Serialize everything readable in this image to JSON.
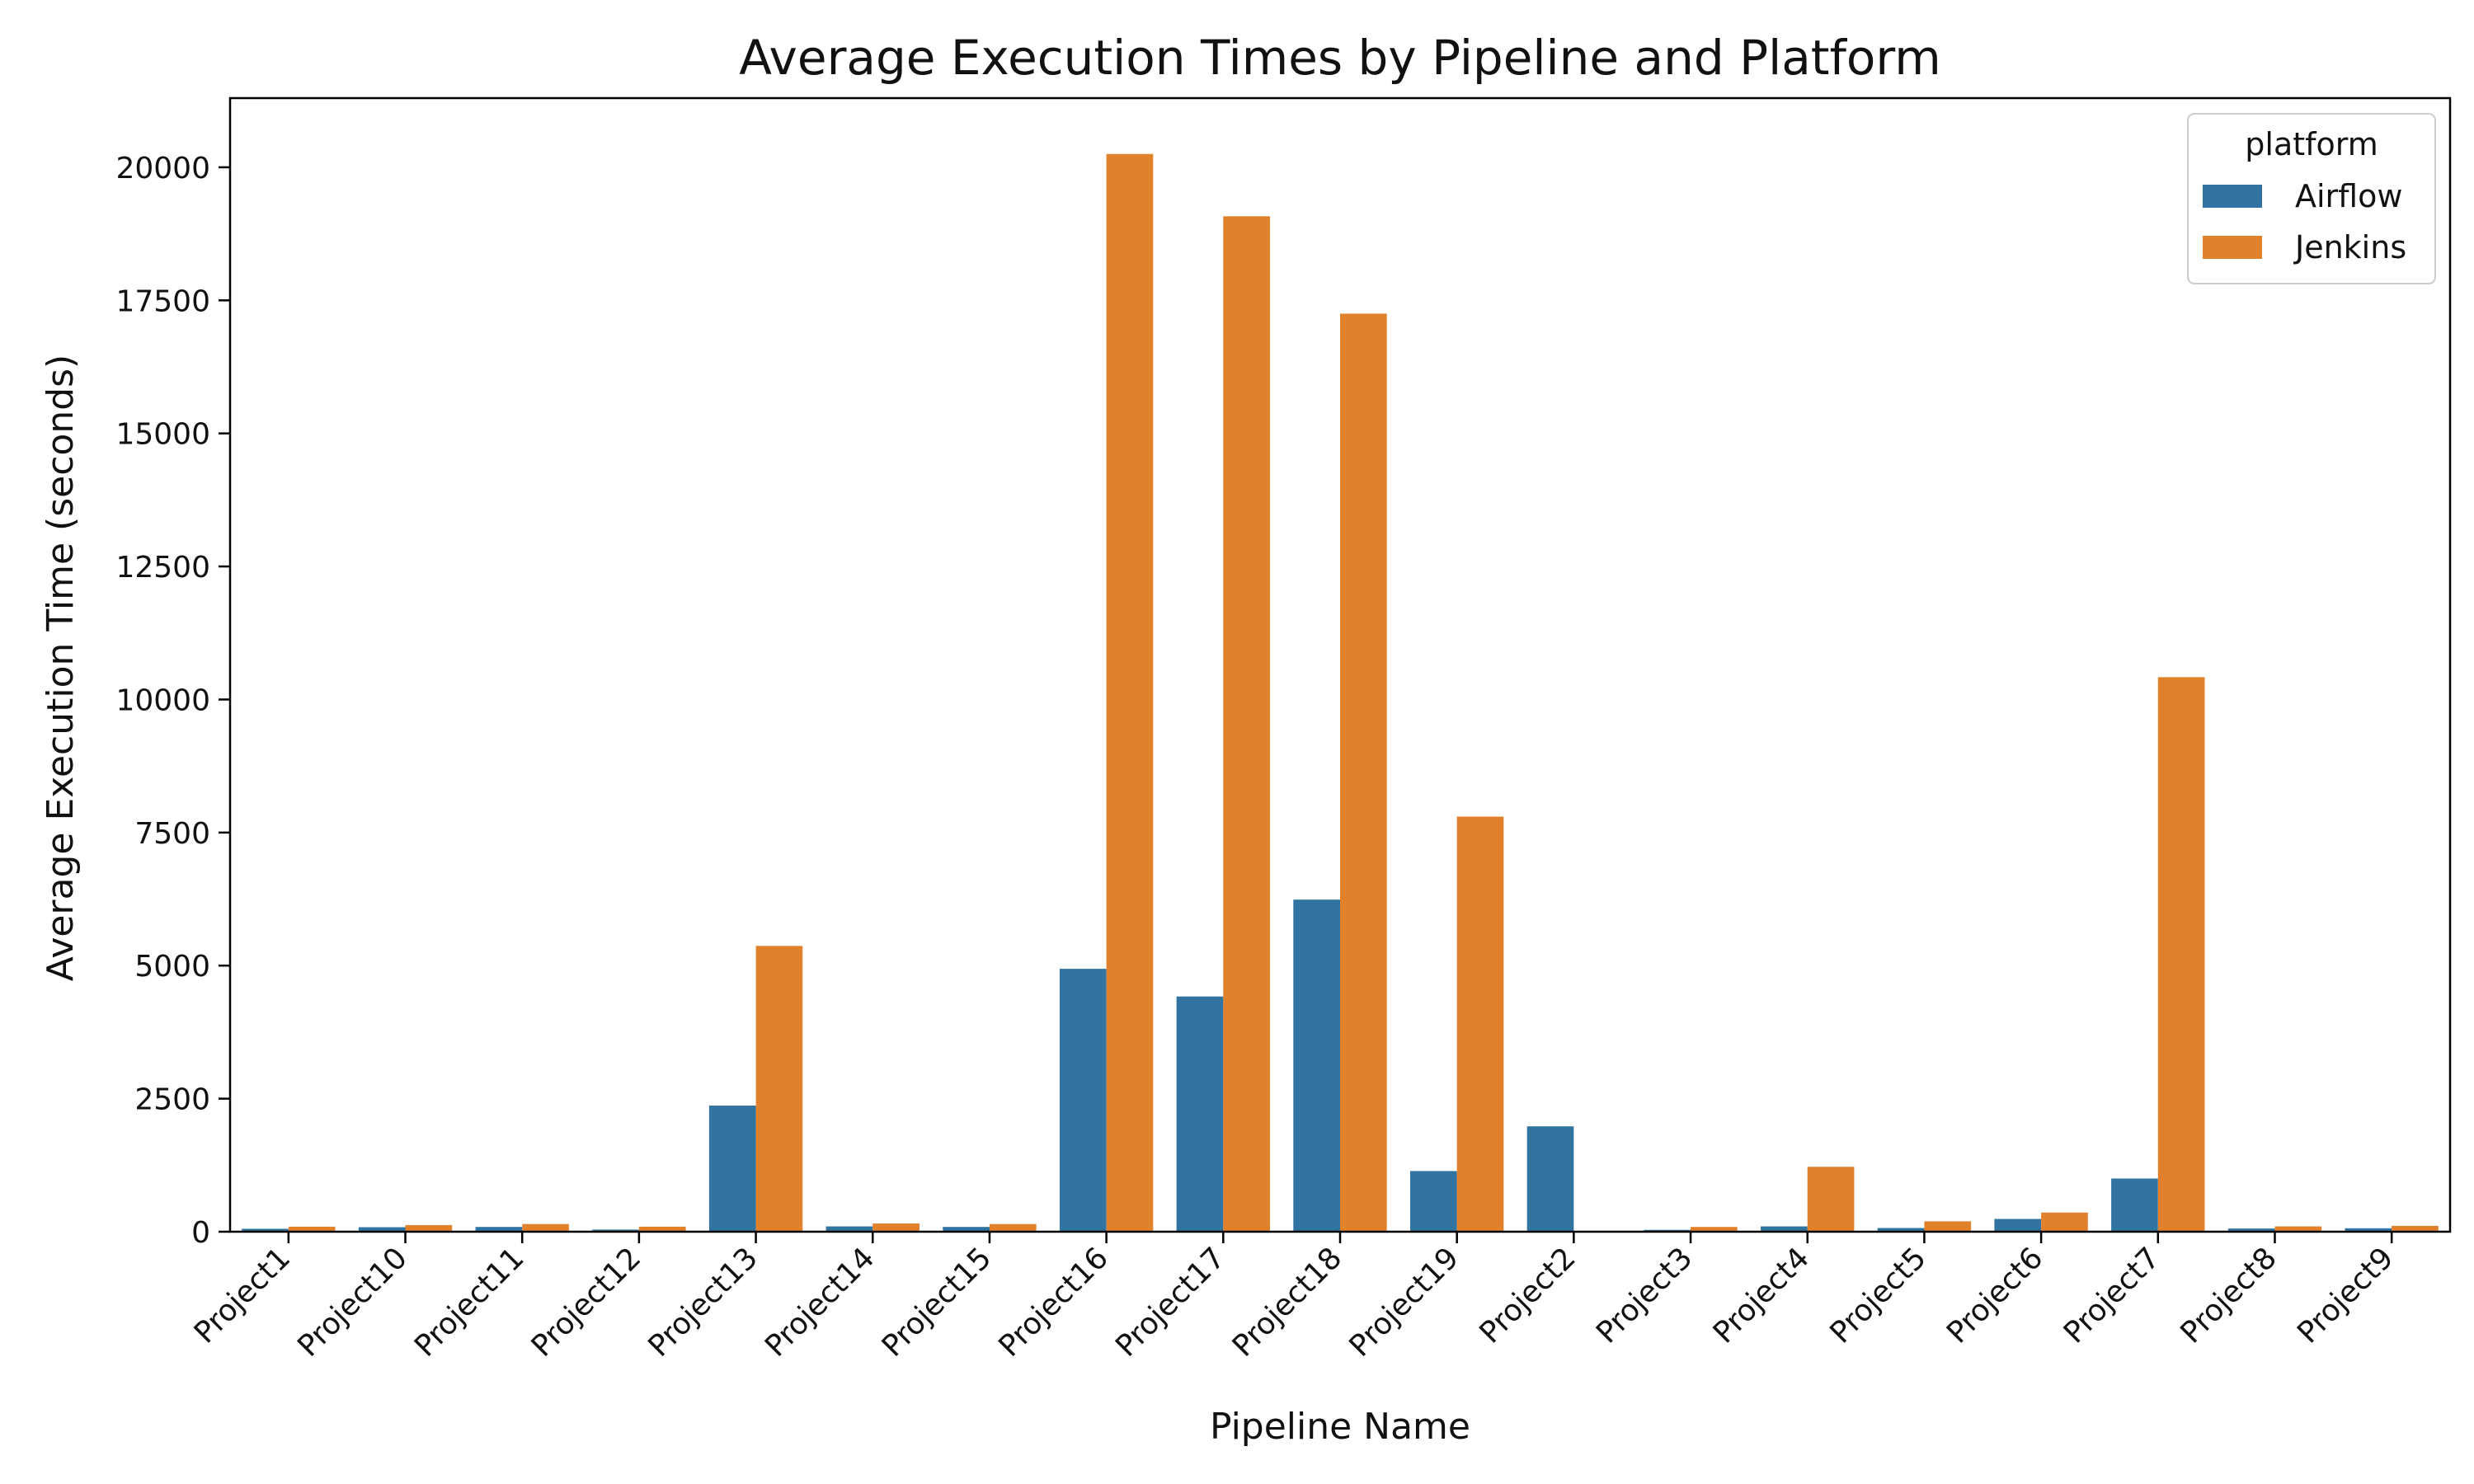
{
  "chart_data": {
    "type": "bar",
    "title": "Average Execution Times by Pipeline and Platform",
    "xlabel": "Pipeline Name",
    "ylabel": "Average Execution Time (seconds)",
    "ylim": [
      0,
      21300
    ],
    "yticks": [
      0,
      2500,
      5000,
      7500,
      10000,
      12500,
      15000,
      17500,
      20000
    ],
    "ytick_labels": [
      "0",
      "2500",
      "5000",
      "7500",
      "10000",
      "12500",
      "15000",
      "17500",
      "20000"
    ],
    "grid": false,
    "legend": {
      "title": "platform",
      "position": "top-right"
    },
    "categories": [
      "Project1",
      "Project10",
      "Project11",
      "Project12",
      "Project13",
      "Project14",
      "Project15",
      "Project16",
      "Project17",
      "Project18",
      "Project19",
      "Project2",
      "Project3",
      "Project4",
      "Project5",
      "Project6",
      "Project7",
      "Project8",
      "Project9"
    ],
    "series": [
      {
        "name": "Airflow",
        "color": "#3274a1",
        "values": [
          55,
          85,
          90,
          40,
          2370,
          100,
          90,
          4940,
          4420,
          6240,
          1140,
          1980,
          35,
          100,
          70,
          240,
          1000,
          60,
          65
        ]
      },
      {
        "name": "Jenkins",
        "color": "#e1812c",
        "values": [
          95,
          125,
          145,
          95,
          5370,
          155,
          145,
          20250,
          19080,
          17250,
          7800,
          0,
          90,
          1220,
          195,
          360,
          10420,
          100,
          110
        ]
      }
    ]
  }
}
